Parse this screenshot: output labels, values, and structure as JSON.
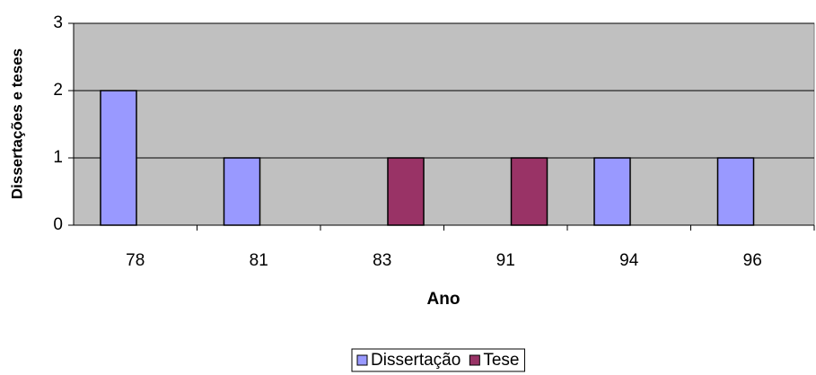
{
  "chart_data": {
    "type": "bar",
    "categories": [
      "78",
      "81",
      "83",
      "91",
      "94",
      "96"
    ],
    "series": [
      {
        "name": "Dissertação",
        "color": "#9999ff",
        "values": [
          2,
          1,
          0,
          0,
          1,
          1
        ]
      },
      {
        "name": "Tese",
        "color": "#993366",
        "values": [
          0,
          0,
          1,
          1,
          0,
          0
        ]
      }
    ],
    "xlabel": "Ano",
    "ylabel": "Dissertações e teses",
    "ylim": [
      0,
      3
    ],
    "yticks": [
      0,
      1,
      2,
      3
    ],
    "grid": true,
    "legend": "bottom"
  }
}
